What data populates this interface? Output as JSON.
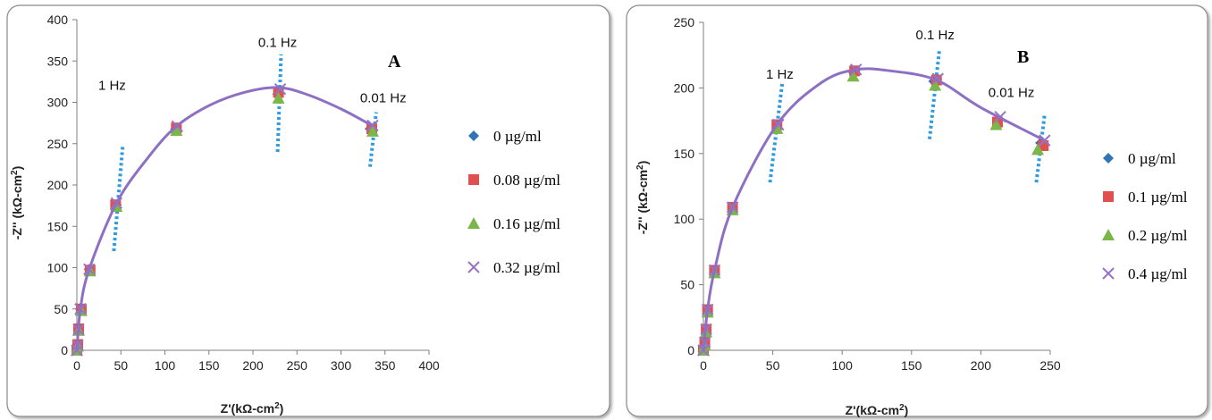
{
  "chart_data": [
    {
      "type": "scatter",
      "panel_label": "A",
      "xlabel": "Z'(kΩ-cm²)",
      "ylabel": "-Z'' (kΩ-cm²)",
      "xlim": [
        0,
        400
      ],
      "ylim": [
        0,
        400
      ],
      "xticks": [
        0,
        50,
        100,
        150,
        200,
        250,
        300,
        350,
        400
      ],
      "yticks": [
        0,
        50,
        100,
        150,
        200,
        250,
        300,
        350,
        400
      ],
      "legend_position": "right",
      "series": [
        {
          "name": "0 µg/ml",
          "marker": "diamond",
          "color": "#2e75b6",
          "x": [
            0,
            1,
            2,
            4,
            14,
            45,
            112,
            228,
            333
          ],
          "y": [
            0,
            5,
            25,
            50,
            98,
            176,
            268,
            310,
            268
          ]
        },
        {
          "name": "0.08  µg/ml",
          "marker": "square",
          "color": "#e05050",
          "x": [
            0,
            1,
            2,
            5,
            15,
            44,
            113,
            229,
            335
          ],
          "y": [
            0,
            7,
            26,
            50,
            97,
            176,
            269,
            312,
            268
          ]
        },
        {
          "name": "0.16 µg/ml",
          "marker": "triangle",
          "color": "#7ab648",
          "x": [
            0,
            1,
            2,
            5,
            15,
            45,
            113,
            229,
            336
          ],
          "y": [
            0,
            5,
            24,
            48,
            96,
            174,
            266,
            305,
            265
          ]
        },
        {
          "name": "0.32 µg/ml",
          "marker": "cross",
          "color": "#9673c8",
          "x": [
            0,
            1,
            2,
            4,
            14,
            45,
            114,
            231,
            336
          ],
          "y": [
            0,
            6,
            25,
            50,
            98,
            178,
            271,
            316,
            272
          ]
        }
      ],
      "fit_curve_color": "#8d6fc4",
      "fit_curve": {
        "x": [
          0,
          4,
          14,
          45,
          80,
          112,
          150,
          190,
          228,
          260,
          300,
          335
        ],
        "y": [
          0,
          50,
          98,
          178,
          232,
          270,
          296,
          312,
          318,
          310,
          292,
          272
        ]
      },
      "annotations": [
        {
          "text": "1 Hz",
          "x": 40,
          "y": 315,
          "line": [
            [
              42,
              120
            ],
            [
              52,
              246
            ]
          ]
        },
        {
          "text": "0.1 Hz",
          "x": 228,
          "y": 367,
          "line": [
            [
              228,
              240
            ],
            [
              232,
              358
            ]
          ]
        },
        {
          "text": "0.01 Hz",
          "x": 348,
          "y": 300,
          "line": [
            [
              333,
              222
            ],
            [
              340,
              288
            ]
          ]
        }
      ]
    },
    {
      "type": "scatter",
      "panel_label": "B",
      "xlabel": "Z'(kΩ-cm²)",
      "ylabel": "-Z'' (kΩ-cm²)",
      "xlim": [
        0,
        250
      ],
      "ylim": [
        0,
        250
      ],
      "xticks": [
        0,
        50,
        100,
        150,
        200,
        250
      ],
      "yticks": [
        0,
        50,
        100,
        150,
        200,
        250
      ],
      "legend_position": "right",
      "series": [
        {
          "name": "0 µg/ml",
          "marker": "diamond",
          "color": "#2e75b6",
          "x": [
            0,
            1,
            2,
            3,
            8,
            21,
            53,
            108,
            166,
            212,
            243
          ],
          "y": [
            0,
            5,
            15,
            30,
            60,
            108,
            170,
            212,
            205,
            175,
            158
          ]
        },
        {
          "name": "0.1 µg/ml",
          "marker": "square",
          "color": "#e05050",
          "x": [
            0,
            1,
            2,
            3,
            8,
            21,
            53,
            109,
            168,
            212,
            245
          ],
          "y": [
            0,
            6,
            16,
            31,
            61,
            109,
            172,
            213,
            206,
            174,
            156
          ]
        },
        {
          "name": "0.2 µg/ml",
          "marker": "triangle",
          "color": "#7ab648",
          "x": [
            0,
            1,
            2,
            3,
            8,
            21,
            53,
            108,
            167,
            211,
            241
          ],
          "y": [
            0,
            4,
            14,
            29,
            59,
            107,
            169,
            209,
            202,
            172,
            153
          ]
        },
        {
          "name": "0.4 µg/ml",
          "marker": "cross",
          "color": "#9673c8",
          "x": [
            0,
            1,
            2,
            3,
            8,
            21,
            54,
            110,
            169,
            214,
            246
          ],
          "y": [
            0,
            6,
            16,
            31,
            61,
            109,
            172,
            214,
            207,
            178,
            160
          ]
        }
      ],
      "fit_curve_color": "#8d6fc4",
      "fit_curve": {
        "x": [
          0,
          3,
          8,
          21,
          53,
          85,
          110,
          135,
          168,
          200,
          246
        ],
        "y": [
          0,
          31,
          61,
          109,
          172,
          204,
          214,
          213,
          206,
          185,
          160
        ]
      },
      "annotations": [
        {
          "text": "1 Hz",
          "x": 55,
          "y": 207,
          "line": [
            [
              48,
              128
            ],
            [
              57,
              205
            ]
          ]
        },
        {
          "text": "0.1 Hz",
          "x": 167,
          "y": 237,
          "line": [
            [
              163,
              161
            ],
            [
              170,
              228
            ]
          ]
        },
        {
          "text": "0.01 Hz",
          "x": 222,
          "y": 193,
          "line": [
            [
              240,
              128
            ],
            [
              246,
              180
            ]
          ]
        }
      ]
    }
  ]
}
